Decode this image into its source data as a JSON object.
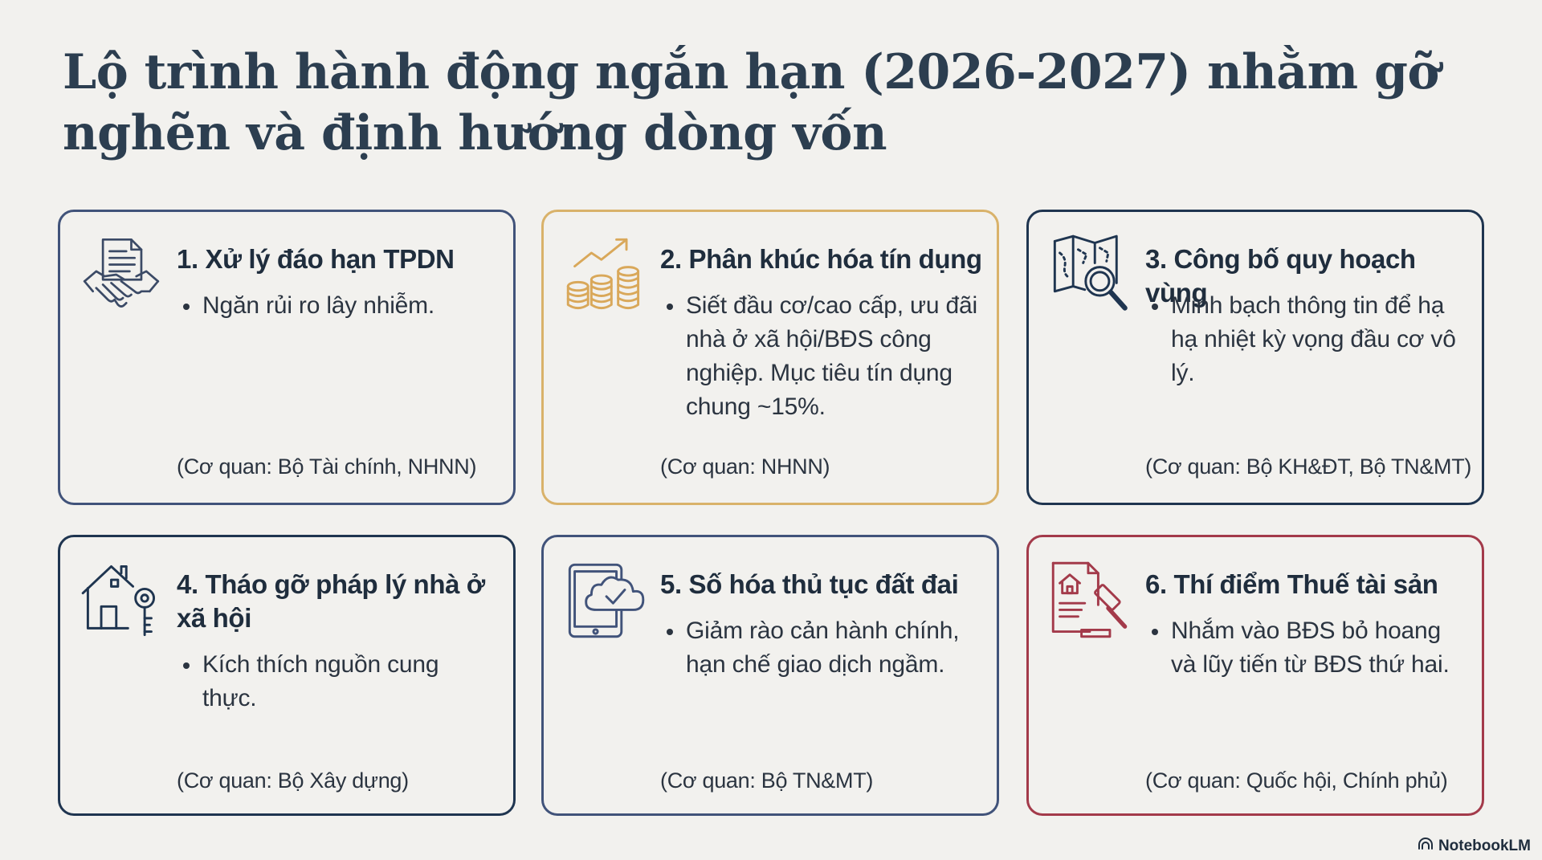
{
  "title": "Lộ trình hành động ngắn hạn (2026-2027) nhằm gỡ nghẽn và định hướng dòng vốn",
  "colors": {
    "background": "#f2f1ee",
    "text": "#1f2d3d",
    "border_slate": "#41537a",
    "border_gold": "#d9b26a",
    "border_navy": "#1f3550",
    "border_red": "#a33a4a"
  },
  "cards": [
    {
      "title": "1. Xử lý đáo hạn TPDN",
      "bullet": "Ngăn rủi ro lây nhiễm.",
      "agency": "(Cơ quan: Bộ Tài chính, NHNN)",
      "icon": "handshake-document-icon"
    },
    {
      "title": "2. Phân khúc hóa tín dụng",
      "bullet": "Siết đầu cơ/cao cấp, ưu đãi nhà ở xã hội/BĐS công nghiệp. Mục tiêu tín dụng chung ~15%.",
      "agency": "(Cơ quan: NHNN)",
      "icon": "coins-growth-icon"
    },
    {
      "title": "3. Công bố quy hoạch vùng",
      "bullet": "Minh bạch thông tin để hạ hạ nhiệt kỳ vọng đầu cơ vô lý.",
      "agency": "(Cơ quan: Bộ KH&ĐT, Bộ TN&MT)",
      "icon": "map-magnifier-icon"
    },
    {
      "title": "4. Tháo gỡ pháp lý nhà ở xã hội",
      "bullet": "Kích thích nguồn cung thực.",
      "agency": "(Cơ quan: Bộ Xây dựng)",
      "icon": "house-key-icon"
    },
    {
      "title": "5. Số hóa thủ tục đất đai",
      "bullet": "Giảm rào cản hành chính, hạn chế giao dịch ngầm.",
      "agency": "(Cơ quan: Bộ TN&MT)",
      "icon": "tablet-cloud-icon"
    },
    {
      "title": "6. Thí điểm Thuế tài sản",
      "bullet": "Nhắm vào BĐS bỏ hoang và lũy tiến từ BĐS thứ hai.",
      "agency": "(Cơ quan: Quốc hội, Chính phủ)",
      "icon": "property-gavel-icon"
    }
  ],
  "brand": {
    "label": "NotebookLM",
    "icon": "notebooklm-logo-icon"
  }
}
